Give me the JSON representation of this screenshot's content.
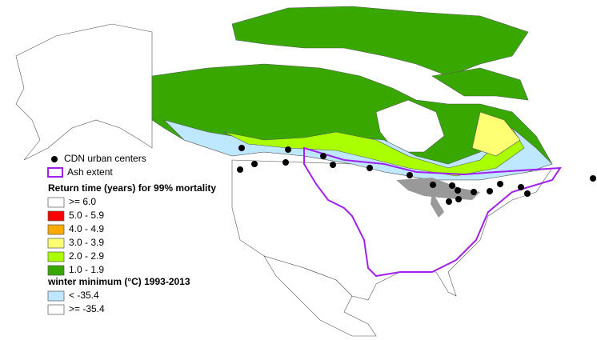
{
  "legend": {
    "urban_centers": "CDN urban centers",
    "ash_extent": "Ash extent",
    "return_time": {
      "title": "Return time (years) for 99% mortality",
      "items": [
        {
          "label": ">= 6.0",
          "color": "#ffffff"
        },
        {
          "label": "5.0 - 5.9",
          "color": "#ff0000"
        },
        {
          "label": "4.0 - 4.9",
          "color": "#ffaa00"
        },
        {
          "label": "3.0 - 3.9",
          "color": "#ffff73"
        },
        {
          "label": "2.0 - 2.9",
          "color": "#aaff00"
        },
        {
          "label": "1.0 - 1.9",
          "color": "#38a800"
        }
      ]
    },
    "winter_minimum": {
      "title": "winter minimum  (°C)  1993-2013",
      "items": [
        {
          "label": "< -35.4",
          "color": "#bee8ff"
        },
        {
          "label": ">= -35.4",
          "color": "#ffffff"
        }
      ]
    }
  }
}
